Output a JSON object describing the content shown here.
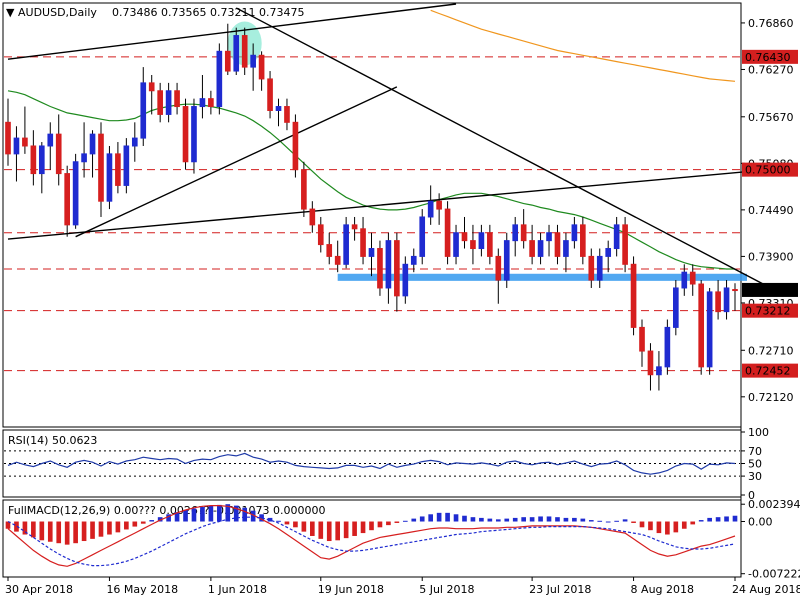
{
  "header": {
    "symbol": "AUDUSD,Daily",
    "ohlc": "0.73486  0.73565  0.73211  0.73475",
    "rsi_title": "RSI(14) 50.0623",
    "macd_title": "FullMACD(12,26,9)  0.00???  0.0026??  -0.001073  0.000000"
  },
  "chart_data": [
    {
      "type": "candlestick",
      "title": "AUDUSD,Daily",
      "ohlc_readout": [
        0.73486,
        0.73565,
        0.73211,
        0.73475
      ],
      "ylim": [
        0.7175,
        0.771
      ],
      "y_ticks": [
        0.7686,
        0.7627,
        0.7567,
        0.7508,
        0.7449,
        0.739,
        0.7331,
        0.7271,
        0.7212
      ],
      "x_tick_labels": [
        "30 Apr 2018",
        "16 May 2018",
        "1 Jun 2018",
        "19 Jun 2018",
        "5 Jul 2018",
        "23 Jul 2018",
        "8 Aug 2018",
        "24 Aug 2018"
      ],
      "x_tick_index": [
        0,
        12,
        24,
        37,
        49,
        62,
        74,
        86
      ],
      "levels": [
        {
          "value": 0.7643,
          "label": "0.76430",
          "color": "#d31f1f"
        },
        {
          "value": 0.75,
          "label": "0.75000",
          "color": "#d31f1f"
        },
        {
          "value": 0.73212,
          "label": "0.73212",
          "color": "#d31f1f"
        },
        {
          "value": 0.72452,
          "label": "0.72452",
          "color": "#d31f1f"
        }
      ],
      "extra_dashed_levels": [
        0.742,
        0.7374
      ],
      "current_price": {
        "value": 0.73475,
        "label": "0.73475"
      },
      "support_zone": [
        0.7359,
        0.7368
      ],
      "candles": [
        [
          0.756,
          0.759,
          0.7505,
          0.752
        ],
        [
          0.752,
          0.7555,
          0.7485,
          0.754
        ],
        [
          0.754,
          0.758,
          0.752,
          0.753
        ],
        [
          0.753,
          0.755,
          0.748,
          0.7495
        ],
        [
          0.7495,
          0.7535,
          0.747,
          0.753
        ],
        [
          0.753,
          0.756,
          0.75,
          0.7545
        ],
        [
          0.7545,
          0.757,
          0.748,
          0.7495
        ],
        [
          0.7495,
          0.7505,
          0.7415,
          0.743
        ],
        [
          0.743,
          0.752,
          0.7425,
          0.751
        ],
        [
          0.751,
          0.756,
          0.749,
          0.752
        ],
        [
          0.752,
          0.755,
          0.749,
          0.7545
        ],
        [
          0.7545,
          0.756,
          0.744,
          0.746
        ],
        [
          0.746,
          0.753,
          0.745,
          0.752
        ],
        [
          0.752,
          0.7535,
          0.747,
          0.748
        ],
        [
          0.748,
          0.754,
          0.747,
          0.753
        ],
        [
          0.753,
          0.756,
          0.751,
          0.754
        ],
        [
          0.754,
          0.763,
          0.753,
          0.761
        ],
        [
          0.761,
          0.762,
          0.757,
          0.76
        ],
        [
          0.76,
          0.761,
          0.756,
          0.757
        ],
        [
          0.757,
          0.761,
          0.756,
          0.76
        ],
        [
          0.76,
          0.761,
          0.757,
          0.758
        ],
        [
          0.758,
          0.759,
          0.75,
          0.751
        ],
        [
          0.751,
          0.759,
          0.7495,
          0.758
        ],
        [
          0.758,
          0.762,
          0.7565,
          0.759
        ],
        [
          0.759,
          0.76,
          0.757,
          0.758
        ],
        [
          0.758,
          0.766,
          0.757,
          0.765
        ],
        [
          0.765,
          0.7685,
          0.762,
          0.7625
        ],
        [
          0.7625,
          0.768,
          0.762,
          0.767
        ],
        [
          0.767,
          0.768,
          0.762,
          0.763
        ],
        [
          0.763,
          0.766,
          0.76,
          0.7645
        ],
        [
          0.7645,
          0.765,
          0.76,
          0.7615
        ],
        [
          0.7615,
          0.7625,
          0.7565,
          0.7575
        ],
        [
          0.7575,
          0.759,
          0.7555,
          0.758
        ],
        [
          0.758,
          0.759,
          0.755,
          0.756
        ],
        [
          0.756,
          0.757,
          0.749,
          0.75
        ],
        [
          0.75,
          0.751,
          0.744,
          0.745
        ],
        [
          0.745,
          0.746,
          0.742,
          0.743
        ],
        [
          0.743,
          0.744,
          0.7395,
          0.7405
        ],
        [
          0.7405,
          0.742,
          0.738,
          0.739
        ],
        [
          0.739,
          0.741,
          0.737,
          0.738
        ],
        [
          0.738,
          0.744,
          0.7375,
          0.743
        ],
        [
          0.743,
          0.744,
          0.741,
          0.7425
        ],
        [
          0.7425,
          0.744,
          0.738,
          0.739
        ],
        [
          0.739,
          0.742,
          0.7365,
          0.74
        ],
        [
          0.74,
          0.741,
          0.734,
          0.735
        ],
        [
          0.735,
          0.742,
          0.733,
          0.741
        ],
        [
          0.741,
          0.742,
          0.732,
          0.734
        ],
        [
          0.734,
          0.739,
          0.733,
          0.738
        ],
        [
          0.738,
          0.74,
          0.737,
          0.739
        ],
        [
          0.739,
          0.745,
          0.738,
          0.744
        ],
        [
          0.744,
          0.748,
          0.743,
          0.746
        ],
        [
          0.746,
          0.747,
          0.743,
          0.745
        ],
        [
          0.745,
          0.746,
          0.738,
          0.739
        ],
        [
          0.739,
          0.743,
          0.738,
          0.742
        ],
        [
          0.742,
          0.744,
          0.74,
          0.741
        ],
        [
          0.741,
          0.743,
          0.738,
          0.74
        ],
        [
          0.74,
          0.743,
          0.739,
          0.742
        ],
        [
          0.742,
          0.743,
          0.738,
          0.739
        ],
        [
          0.739,
          0.74,
          0.733,
          0.736
        ],
        [
          0.736,
          0.742,
          0.735,
          0.741
        ],
        [
          0.741,
          0.744,
          0.739,
          0.743
        ],
        [
          0.743,
          0.745,
          0.74,
          0.741
        ],
        [
          0.741,
          0.743,
          0.738,
          0.739
        ],
        [
          0.739,
          0.742,
          0.738,
          0.741
        ],
        [
          0.741,
          0.743,
          0.739,
          0.742
        ],
        [
          0.742,
          0.743,
          0.738,
          0.739
        ],
        [
          0.739,
          0.742,
          0.737,
          0.741
        ],
        [
          0.741,
          0.744,
          0.74,
          0.743
        ],
        [
          0.743,
          0.744,
          0.738,
          0.739
        ],
        [
          0.739,
          0.74,
          0.735,
          0.736
        ],
        [
          0.736,
          0.74,
          0.735,
          0.739
        ],
        [
          0.739,
          0.741,
          0.737,
          0.74
        ],
        [
          0.74,
          0.744,
          0.739,
          0.743
        ],
        [
          0.743,
          0.744,
          0.737,
          0.738
        ],
        [
          0.738,
          0.739,
          0.729,
          0.73
        ],
        [
          0.73,
          0.731,
          0.725,
          0.727
        ],
        [
          0.727,
          0.728,
          0.722,
          0.724
        ],
        [
          0.724,
          0.727,
          0.722,
          0.725
        ],
        [
          0.725,
          0.731,
          0.724,
          0.73
        ],
        [
          0.73,
          0.736,
          0.729,
          0.735
        ],
        [
          0.735,
          0.738,
          0.734,
          0.737
        ],
        [
          0.737,
          0.738,
          0.734,
          0.7355
        ],
        [
          0.7355,
          0.736,
          0.724,
          0.725
        ],
        [
          0.725,
          0.735,
          0.724,
          0.7345
        ],
        [
          0.7345,
          0.736,
          0.731,
          0.732
        ],
        [
          0.732,
          0.736,
          0.731,
          0.735
        ],
        [
          0.7348,
          0.7356,
          0.7321,
          0.7347
        ]
      ],
      "ma_fast": [
        0.76,
        0.7598,
        0.7595,
        0.759,
        0.7585,
        0.758,
        0.7576,
        0.7572,
        0.757,
        0.7568,
        0.7566,
        0.7564,
        0.7562,
        0.7562,
        0.7563,
        0.7565,
        0.757,
        0.7575,
        0.7578,
        0.758,
        0.7582,
        0.7583,
        0.7583,
        0.7582,
        0.758,
        0.7578,
        0.7575,
        0.7572,
        0.7568,
        0.7562,
        0.7555,
        0.7547,
        0.7538,
        0.7528,
        0.7518,
        0.7508,
        0.7498,
        0.7488,
        0.748,
        0.7472,
        0.7465,
        0.746,
        0.7455,
        0.7452,
        0.745,
        0.7449,
        0.7449,
        0.745,
        0.7452,
        0.7455,
        0.7458,
        0.7462,
        0.7465,
        0.7468,
        0.747,
        0.747,
        0.747,
        0.7468,
        0.7466,
        0.7463,
        0.746,
        0.7457,
        0.7455,
        0.7452,
        0.745,
        0.7447,
        0.7445,
        0.7443,
        0.744,
        0.7436,
        0.7432,
        0.7428,
        0.7424,
        0.742,
        0.7414,
        0.7408,
        0.7402,
        0.7396,
        0.7391,
        0.7386,
        0.7382,
        0.7379,
        0.7377,
        0.7376,
        0.7375,
        0.7374,
        0.7374
      ],
      "ma_slow": [
        null,
        null,
        null,
        null,
        null,
        null,
        null,
        null,
        null,
        null,
        null,
        null,
        null,
        null,
        null,
        null,
        null,
        null,
        null,
        null,
        null,
        null,
        null,
        null,
        null,
        null,
        null,
        null,
        null,
        null,
        null,
        null,
        null,
        null,
        null,
        null,
        null,
        null,
        null,
        null,
        null,
        null,
        null,
        null,
        null,
        null,
        null,
        null,
        null,
        null,
        0.7702,
        0.7698,
        0.7694,
        0.769,
        0.7686,
        0.7682,
        0.7678,
        0.7675,
        0.7672,
        0.7669,
        0.7666,
        0.7663,
        0.766,
        0.7657,
        0.7654,
        0.7651,
        0.7649,
        0.7647,
        0.7645,
        0.7643,
        0.7641,
        0.7639,
        0.7637,
        0.7635,
        0.7633,
        0.7631,
        0.7629,
        0.7627,
        0.7625,
        0.7623,
        0.7621,
        0.7619,
        0.7617,
        0.7615,
        0.7614,
        0.7613,
        0.7612
      ],
      "trendlines": [
        {
          "x1": 0,
          "y1": 0.764,
          "x2": 53,
          "y2": 0.771,
          "color": "#000000"
        },
        {
          "x1": 27,
          "y1": 0.7705,
          "x2": 92,
          "y2": 0.734,
          "color": "#000000"
        },
        {
          "x1": 8,
          "y1": 0.7415,
          "x2": 46,
          "y2": 0.7605,
          "color": "#000000"
        },
        {
          "x1": 0,
          "y1": 0.7412,
          "x2": 92,
          "y2": 0.7502,
          "color": "#000000"
        }
      ],
      "highlight_circle_index": 28
    },
    {
      "type": "line",
      "title": "RSI(14) 50.0623",
      "ylim": [
        0,
        100
      ],
      "y_ticks": [
        100,
        70,
        50,
        30,
        0
      ],
      "levels": [
        70,
        50,
        30
      ],
      "values": [
        47,
        52,
        48,
        45,
        50,
        54,
        48,
        44,
        52,
        55,
        52,
        46,
        53,
        49,
        54,
        56,
        60,
        58,
        56,
        58,
        57,
        50,
        55,
        57,
        56,
        61,
        64,
        62,
        66,
        60,
        57,
        52,
        54,
        52,
        47,
        45,
        44,
        43,
        42,
        43,
        47,
        47,
        44,
        46,
        42,
        49,
        44,
        47,
        49,
        53,
        55,
        53,
        48,
        51,
        50,
        49,
        51,
        49,
        46,
        52,
        54,
        50,
        48,
        51,
        52,
        48,
        51,
        54,
        49,
        45,
        49,
        50,
        54,
        48,
        39,
        35,
        33,
        35,
        39,
        46,
        50,
        49,
        41,
        49,
        48,
        51,
        50
      ]
    },
    {
      "type": "bar",
      "title": "FullMACD(12,26,9)",
      "ylim": [
        -0.0074,
        0.0027
      ],
      "y_ticks": [
        0.002394,
        0.0,
        -0.007222
      ],
      "y_tick_labels": [
        "0.002394",
        "0.00",
        "-0.007222"
      ],
      "histogram": [
        -0.001,
        -0.0014,
        -0.0018,
        -0.0022,
        -0.0026,
        -0.0028,
        -0.003,
        -0.0032,
        -0.003,
        -0.0027,
        -0.0024,
        -0.0021,
        -0.0018,
        -0.0015,
        -0.0011,
        -0.0007,
        -0.0003,
        0.0002,
        0.0006,
        0.001,
        0.0013,
        0.0016,
        0.0018,
        0.002,
        0.0022,
        0.0023,
        0.0024,
        0.0022,
        0.0019,
        0.0015,
        0.001,
        0.0005,
        0.0001,
        -0.0004,
        -0.0008,
        -0.0014,
        -0.002,
        -0.0024,
        -0.0027,
        -0.0026,
        -0.0023,
        -0.002,
        -0.0016,
        -0.0012,
        -0.0008,
        -0.0005,
        -0.0002,
        0.0001,
        0.0004,
        0.0007,
        0.001,
        0.0012,
        0.0012,
        0.001,
        0.0008,
        0.0006,
        0.0005,
        0.0004,
        0.0003,
        0.0004,
        0.0005,
        0.0006,
        0.0006,
        0.0007,
        0.0007,
        0.0006,
        0.0005,
        0.0005,
        0.0004,
        0.0002,
        0.0001,
        0.0,
        0.0001,
        0.0003,
        -0.0002,
        -0.0008,
        -0.0012,
        -0.0016,
        -0.0018,
        -0.0015,
        -0.001,
        -0.0004,
        0.0002,
        0.0005,
        0.0006,
        0.0007,
        0.0008
      ],
      "macd_line": [
        -0.001,
        -0.002,
        -0.003,
        -0.004,
        -0.0048,
        -0.0055,
        -0.006,
        -0.0062,
        -0.0058,
        -0.0052,
        -0.0046,
        -0.004,
        -0.0034,
        -0.0028,
        -0.0022,
        -0.0016,
        -0.001,
        -0.0004,
        0.0002,
        0.0007,
        0.0012,
        0.0016,
        0.0019,
        0.0021,
        0.0022,
        0.0022,
        0.0021,
        0.0018,
        0.0014,
        0.0009,
        0.0003,
        -0.0003,
        -0.001,
        -0.0018,
        -0.0026,
        -0.0034,
        -0.0042,
        -0.005,
        -0.0052,
        -0.0048,
        -0.0042,
        -0.0036,
        -0.003,
        -0.0026,
        -0.0022,
        -0.002,
        -0.0018,
        -0.0016,
        -0.0014,
        -0.0012,
        -0.001,
        -0.0009,
        -0.0009,
        -0.001,
        -0.001,
        -0.001,
        -0.0009,
        -0.0009,
        -0.0009,
        -0.0008,
        -0.0008,
        -0.0007,
        -0.0006,
        -0.0006,
        -0.0006,
        -0.0006,
        -0.0006,
        -0.0006,
        -0.0007,
        -0.0008,
        -0.001,
        -0.0012,
        -0.0014,
        -0.0016,
        -0.0024,
        -0.0032,
        -0.004,
        -0.0045,
        -0.0048,
        -0.0046,
        -0.0042,
        -0.0038,
        -0.0034,
        -0.0032,
        -0.0028,
        -0.0024,
        -0.002
      ],
      "signal_line": [
        0.0,
        -0.0006,
        -0.0014,
        -0.0022,
        -0.003,
        -0.0038,
        -0.0045,
        -0.0051,
        -0.0056,
        -0.0059,
        -0.0061,
        -0.0061,
        -0.006,
        -0.0058,
        -0.0055,
        -0.0051,
        -0.0046,
        -0.0041,
        -0.0035,
        -0.0029,
        -0.0023,
        -0.0017,
        -0.0012,
        -0.0007,
        -0.0003,
        0.0,
        0.0003,
        0.0005,
        0.0006,
        0.0006,
        0.0005,
        0.0002,
        -0.0002,
        -0.0008,
        -0.0014,
        -0.002,
        -0.0026,
        -0.0031,
        -0.0036,
        -0.0039,
        -0.0041,
        -0.0041,
        -0.004,
        -0.0038,
        -0.0036,
        -0.0034,
        -0.0032,
        -0.003,
        -0.0028,
        -0.0026,
        -0.0024,
        -0.0022,
        -0.002,
        -0.0018,
        -0.0017,
        -0.0016,
        -0.0014,
        -0.0013,
        -0.0012,
        -0.0011,
        -0.001,
        -0.0009,
        -0.0008,
        -0.0008,
        -0.0007,
        -0.0007,
        -0.0007,
        -0.0007,
        -0.0007,
        -0.0008,
        -0.0009,
        -0.001,
        -0.0012,
        -0.0014,
        -0.0016,
        -0.0018,
        -0.0022,
        -0.0027,
        -0.0031,
        -0.0035,
        -0.0037,
        -0.0038,
        -0.0038,
        -0.0037,
        -0.0035,
        -0.0033,
        -0.0031
      ]
    }
  ],
  "colors": {
    "bull": "#1f2bd0",
    "bear": "#d61f1f",
    "ma_fast": "#1f8a1f",
    "ma_slow": "#f0961e",
    "level": "#d31f1f",
    "zone": "#3399ee",
    "rsi": "#1f3aa8",
    "macd_line": "#d61f1f",
    "signal_line": "#1f2bd0"
  }
}
